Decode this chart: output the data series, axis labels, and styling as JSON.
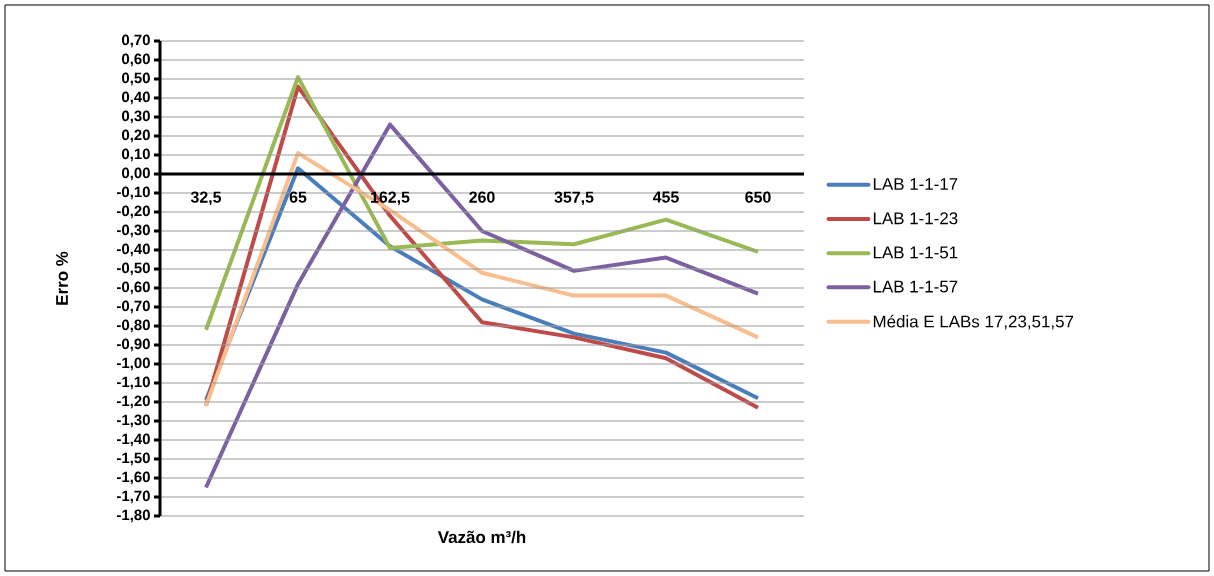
{
  "chart_data": {
    "type": "line",
    "xlabel": "Vazão m³/h",
    "ylabel": "Erro %",
    "categories": [
      "32,5",
      "65",
      "162,5",
      "260",
      "357,5",
      "455",
      "650"
    ],
    "series": [
      {
        "name": "LAB 1-1-17",
        "color": "#4a7ebb",
        "values": [
          -1.19,
          0.03,
          -0.38,
          -0.66,
          -0.84,
          -0.94,
          -1.18
        ]
      },
      {
        "name": "LAB 1-1-23",
        "color": "#be4b48",
        "values": [
          -1.22,
          0.46,
          -0.22,
          -0.78,
          -0.86,
          -0.97,
          -1.23
        ]
      },
      {
        "name": "LAB 1-1-51",
        "color": "#98b954",
        "values": [
          -0.82,
          0.51,
          -0.39,
          -0.35,
          -0.37,
          -0.24,
          -0.41
        ]
      },
      {
        "name": "LAB 1-1-57",
        "color": "#7d60a0",
        "values": [
          -1.65,
          -0.58,
          0.26,
          -0.3,
          -0.51,
          -0.44,
          -0.63
        ]
      },
      {
        "name": "Média E  LABs 17,23,51,57",
        "color": "#f9be8e",
        "values": [
          -1.22,
          0.11,
          -0.19,
          -0.52,
          -0.64,
          -0.64,
          -0.86
        ]
      }
    ],
    "ylim": [
      -1.8,
      0.7
    ],
    "yticks": [
      {
        "value": 0.7,
        "label": "0,70"
      },
      {
        "value": 0.6,
        "label": "0,60"
      },
      {
        "value": 0.5,
        "label": "0,50"
      },
      {
        "value": 0.4,
        "label": "0,40"
      },
      {
        "value": 0.3,
        "label": "0,30"
      },
      {
        "value": 0.2,
        "label": "0,20"
      },
      {
        "value": 0.1,
        "label": "0,10"
      },
      {
        "value": 0.0,
        "label": "0,00"
      },
      {
        "value": -0.1,
        "label": "-0,10"
      },
      {
        "value": -0.2,
        "label": "-0,20"
      },
      {
        "value": -0.3,
        "label": "-0,30"
      },
      {
        "value": -0.4,
        "label": "-0,40"
      },
      {
        "value": -0.5,
        "label": "-0,50"
      },
      {
        "value": -0.6,
        "label": "-0,60"
      },
      {
        "value": -0.7,
        "label": "-0,70"
      },
      {
        "value": -0.8,
        "label": "-0,80"
      },
      {
        "value": -0.9,
        "label": "-0,90"
      },
      {
        "value": -1.0,
        "label": "-1,00"
      },
      {
        "value": -1.1,
        "label": "-1,10"
      },
      {
        "value": -1.2,
        "label": "-1,20"
      },
      {
        "value": -1.3,
        "label": "-1,30"
      },
      {
        "value": -1.4,
        "label": "-1,40"
      },
      {
        "value": -1.5,
        "label": "-1,50"
      },
      {
        "value": -1.6,
        "label": "-1,60"
      },
      {
        "value": -1.7,
        "label": "-1,70"
      },
      {
        "value": -1.8,
        "label": "-1,80"
      }
    ],
    "grid": "y",
    "legend": "right",
    "marker": "none",
    "line_style": "solid"
  }
}
